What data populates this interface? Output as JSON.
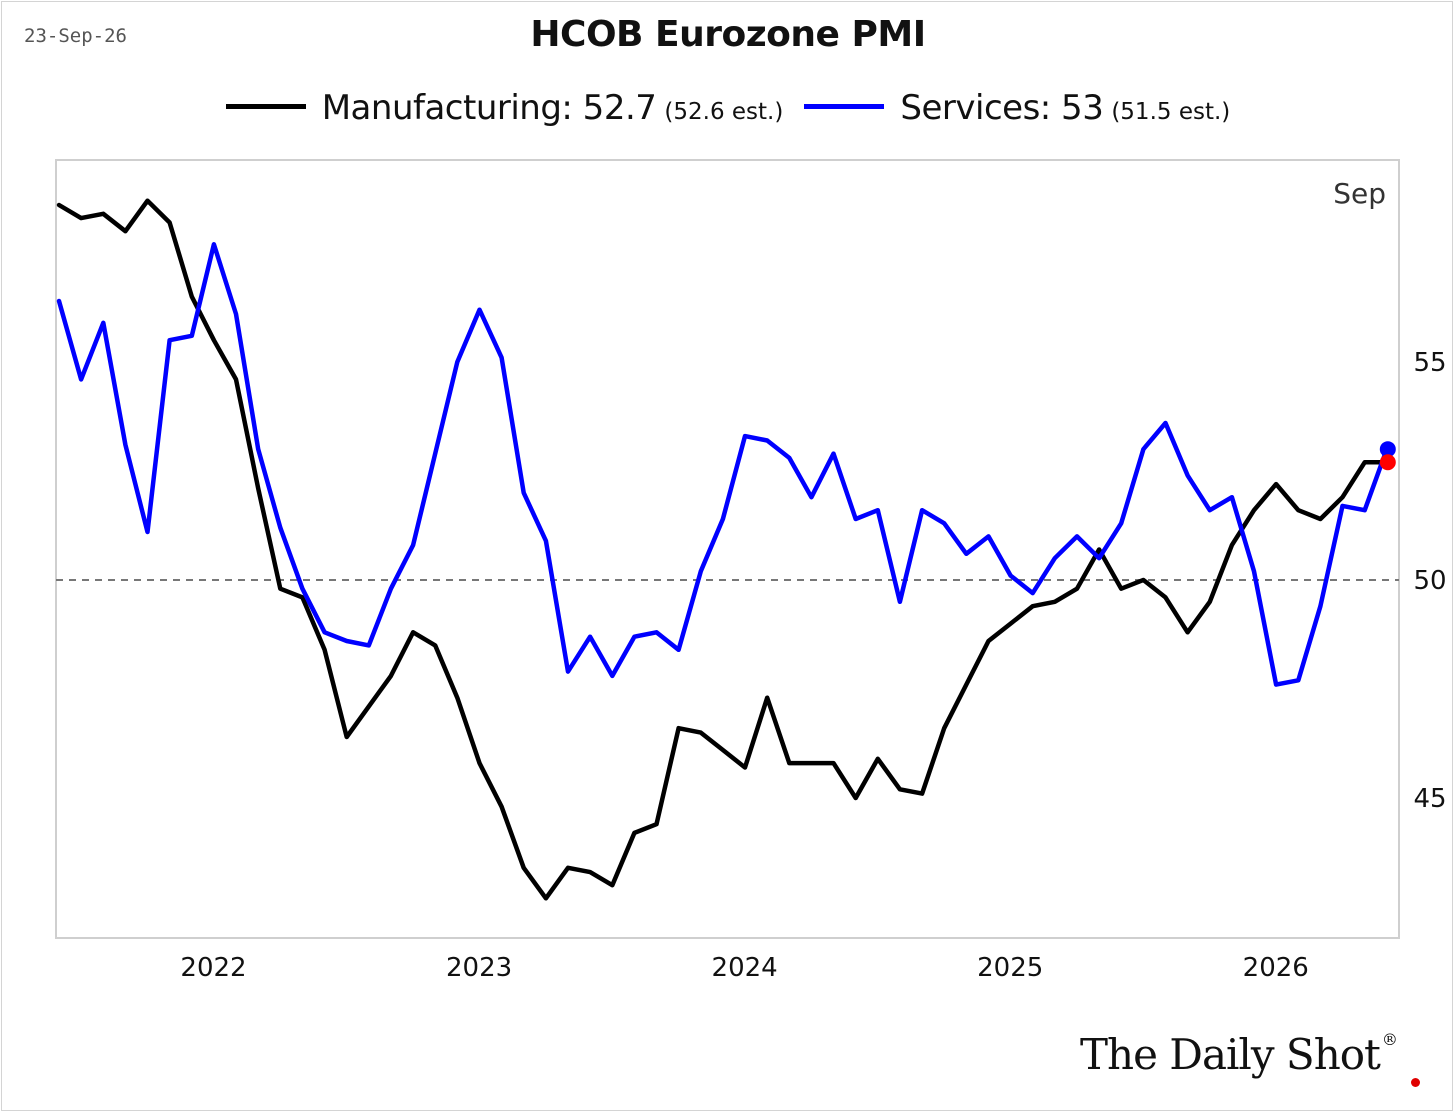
{
  "header": {
    "date": "23-Sep-26",
    "title": "HCOB Eurozone PMI"
  },
  "legend": [
    {
      "label": "Manufacturing: 52.7",
      "est": "(52.6 est.)",
      "color": "#000000"
    },
    {
      "label": "Services: 53",
      "est": "(51.5 est.)",
      "color": "#0000ff"
    }
  ],
  "branding": {
    "text": "The Daily Shot",
    "mark": "®",
    "dot_color": "#e00000"
  },
  "chart_data": {
    "type": "line",
    "title": "HCOB Eurozone PMI",
    "xlabel": "",
    "ylabel": "",
    "annotation": "Sep",
    "x_start": "2021-09",
    "x_tick_labels": [
      "2022",
      "2023",
      "2024",
      "2025",
      "2026"
    ],
    "y_ticks": [
      45,
      50,
      55
    ],
    "ylim": [
      41.9,
      59.7
    ],
    "reference_line": 50,
    "grid": false,
    "legend_position": "top",
    "series": [
      {
        "name": "Manufacturing",
        "color": "#000000",
        "values": [
          58.6,
          58.3,
          58.4,
          58.0,
          58.7,
          58.2,
          56.5,
          55.5,
          54.6,
          52.1,
          49.8,
          49.6,
          48.4,
          46.4,
          47.1,
          47.8,
          48.8,
          48.5,
          47.3,
          45.8,
          44.8,
          43.4,
          42.7,
          43.4,
          43.3,
          43.0,
          44.2,
          44.4,
          46.6,
          46.5,
          46.1,
          45.7,
          47.3,
          45.8,
          45.8,
          45.8,
          45.0,
          45.9,
          45.2,
          45.1,
          46.6,
          47.6,
          48.6,
          49.0,
          49.4,
          49.5,
          49.8,
          50.7,
          49.8,
          50.0,
          49.6,
          48.8,
          49.5,
          50.8,
          51.6,
          52.2,
          51.6,
          51.4,
          51.9,
          52.7,
          52.7
        ]
      },
      {
        "name": "Services",
        "color": "#0000ff",
        "values": [
          56.4,
          54.6,
          55.9,
          53.1,
          51.1,
          55.5,
          55.6,
          57.7,
          56.1,
          53.0,
          51.2,
          49.8,
          48.8,
          48.6,
          48.5,
          49.8,
          50.8,
          52.9,
          55.0,
          56.2,
          55.1,
          52.0,
          50.9,
          47.9,
          48.7,
          47.8,
          48.7,
          48.8,
          48.4,
          50.2,
          51.4,
          53.3,
          53.2,
          52.8,
          51.9,
          52.9,
          51.4,
          51.6,
          49.5,
          51.6,
          51.3,
          50.6,
          51.0,
          50.1,
          49.7,
          50.5,
          51.0,
          50.5,
          51.3,
          53.0,
          53.6,
          52.4,
          51.6,
          51.9,
          50.2,
          47.6,
          47.7,
          49.4,
          51.7,
          51.6,
          53.0
        ]
      }
    ],
    "endpoints": [
      {
        "series": "Services",
        "value": 53.0,
        "color": "#0000ff"
      },
      {
        "series": "Manufacturing",
        "value": 52.7,
        "color": "#ff0000"
      }
    ]
  }
}
